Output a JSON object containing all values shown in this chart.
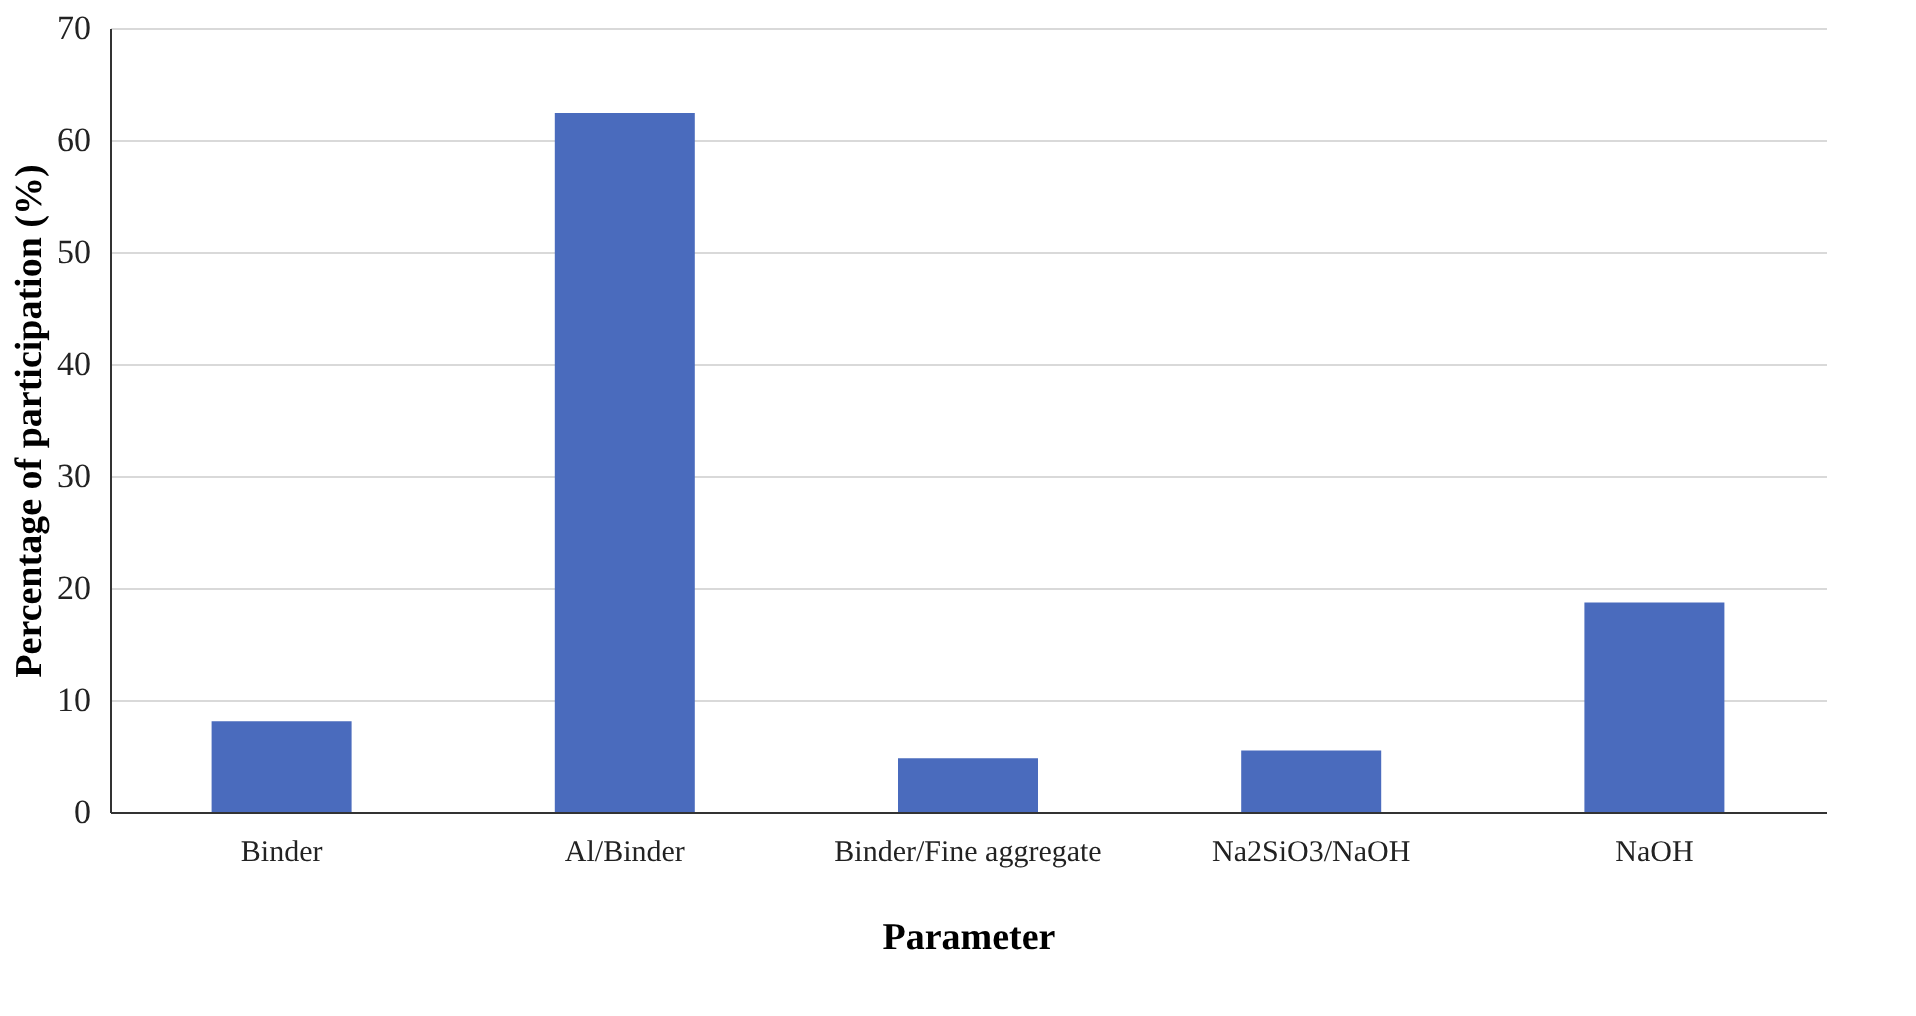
{
  "chart_data": {
    "type": "bar",
    "xlabel": "Parameter",
    "ylabel": "Percentage of participation (%)",
    "categories": [
      "Binder",
      "Al/Binder",
      "Binder/Fine aggregate",
      "Na2SiO3/NaOH",
      "NaOH"
    ],
    "values": [
      8.1,
      62.4,
      4.8,
      5.5,
      18.7
    ],
    "color": "#4a6bbd",
    "ylim": [
      0,
      70
    ],
    "yticks": [
      0,
      10,
      20,
      30,
      40,
      50,
      60,
      70
    ],
    "grid": "y"
  }
}
